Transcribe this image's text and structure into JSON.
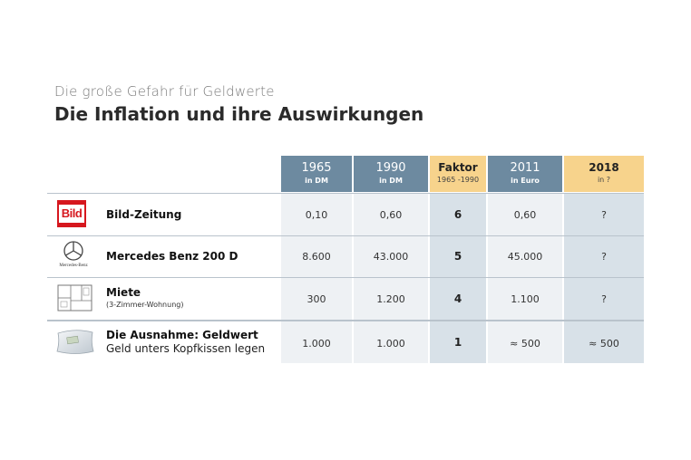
{
  "header": {
    "subtitle": "Die große Gefahr für Geldwerte",
    "title": "Die Inflation und ihre Auswirkungen"
  },
  "columns": [
    {
      "year": "1965",
      "unit": "in DM"
    },
    {
      "year": "1990",
      "unit": "in DM"
    },
    {
      "year": "Faktor",
      "unit": "1965 -1990"
    },
    {
      "year": "2011",
      "unit": "in Euro"
    },
    {
      "year": "2018",
      "unit": "in ?"
    }
  ],
  "rows": [
    {
      "label": "Bild-Zeitung",
      "sublabel": "",
      "icon": "bild-logo",
      "icon_text": "Bild",
      "values": [
        "0,10",
        "0,60",
        "6",
        "0,60",
        "?"
      ]
    },
    {
      "label": "Mercedes Benz 200 D",
      "sublabel": "",
      "icon": "mercedes-logo",
      "icon_text": "Mercedes-Benz",
      "values": [
        "8.600",
        "43.000",
        "5",
        "45.000",
        "?"
      ]
    },
    {
      "label": "Miete",
      "sublabel": "(3-Zimmer-Wohnung)",
      "icon": "floorplan-icon",
      "icon_text": "",
      "values": [
        "300",
        "1.200",
        "4",
        "1.100",
        "?"
      ]
    },
    {
      "label": "Die Ausnahme: Geldwert",
      "sublabel": "Geld unters Kopfkissen legen",
      "icon": "pillow-icon",
      "icon_text": "",
      "values": [
        "1.000",
        "1.000",
        "1",
        "≈ 500",
        "≈ 500"
      ]
    }
  ],
  "colors": {
    "header_dark": "#6d8aa0",
    "header_gold": "#f7d38c",
    "cell_light": "#eef1f4",
    "cell_faktor": "#d8e1e8",
    "bild_red": "#d6171e"
  }
}
